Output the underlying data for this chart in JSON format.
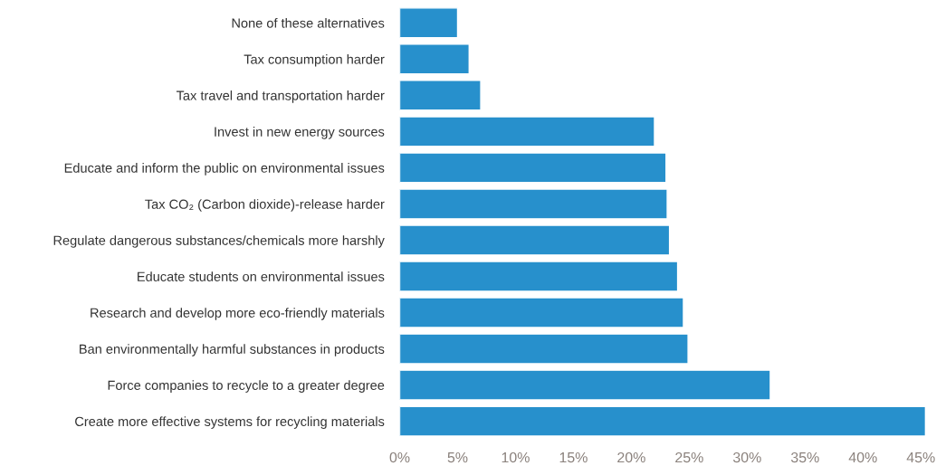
{
  "chart_data": {
    "type": "bar",
    "orientation": "horizontal",
    "categories": [
      "None of these alternatives",
      "Tax consumption harder",
      "Tax travel and transportation harder",
      "Invest in new energy sources",
      "Educate and inform the public on environmental issues",
      "Tax CO₂ (Carbon dioxide)-release harder",
      "Regulate dangerous substances/chemicals more harshly",
      "Educate students on environmental issues",
      "Research and develop more eco-friendly materials",
      "Ban environmentally harmful substances in products",
      "Force companies to recycle to a greater degree",
      "Create more effective systems for recycling materials"
    ],
    "values": [
      5.0,
      6.0,
      7.0,
      22.0,
      23.0,
      23.1,
      23.3,
      24.0,
      24.5,
      24.9,
      32.0,
      45.4
    ],
    "color": "#2790cc",
    "xlim": [
      0,
      45.5
    ],
    "xticks": [
      {
        "value": 0,
        "label": "0%"
      },
      {
        "value": 5,
        "label": "5%"
      },
      {
        "value": 10,
        "label": "10%"
      },
      {
        "value": 15,
        "label": "15%"
      },
      {
        "value": 20,
        "label": "20%"
      },
      {
        "value": 25,
        "label": "25%"
      },
      {
        "value": 30,
        "label": "30%"
      },
      {
        "value": 35,
        "label": "35%"
      },
      {
        "value": 40,
        "label": "40%"
      },
      {
        "value": 45,
        "label": "45%"
      }
    ],
    "grid": false,
    "legend": false
  }
}
